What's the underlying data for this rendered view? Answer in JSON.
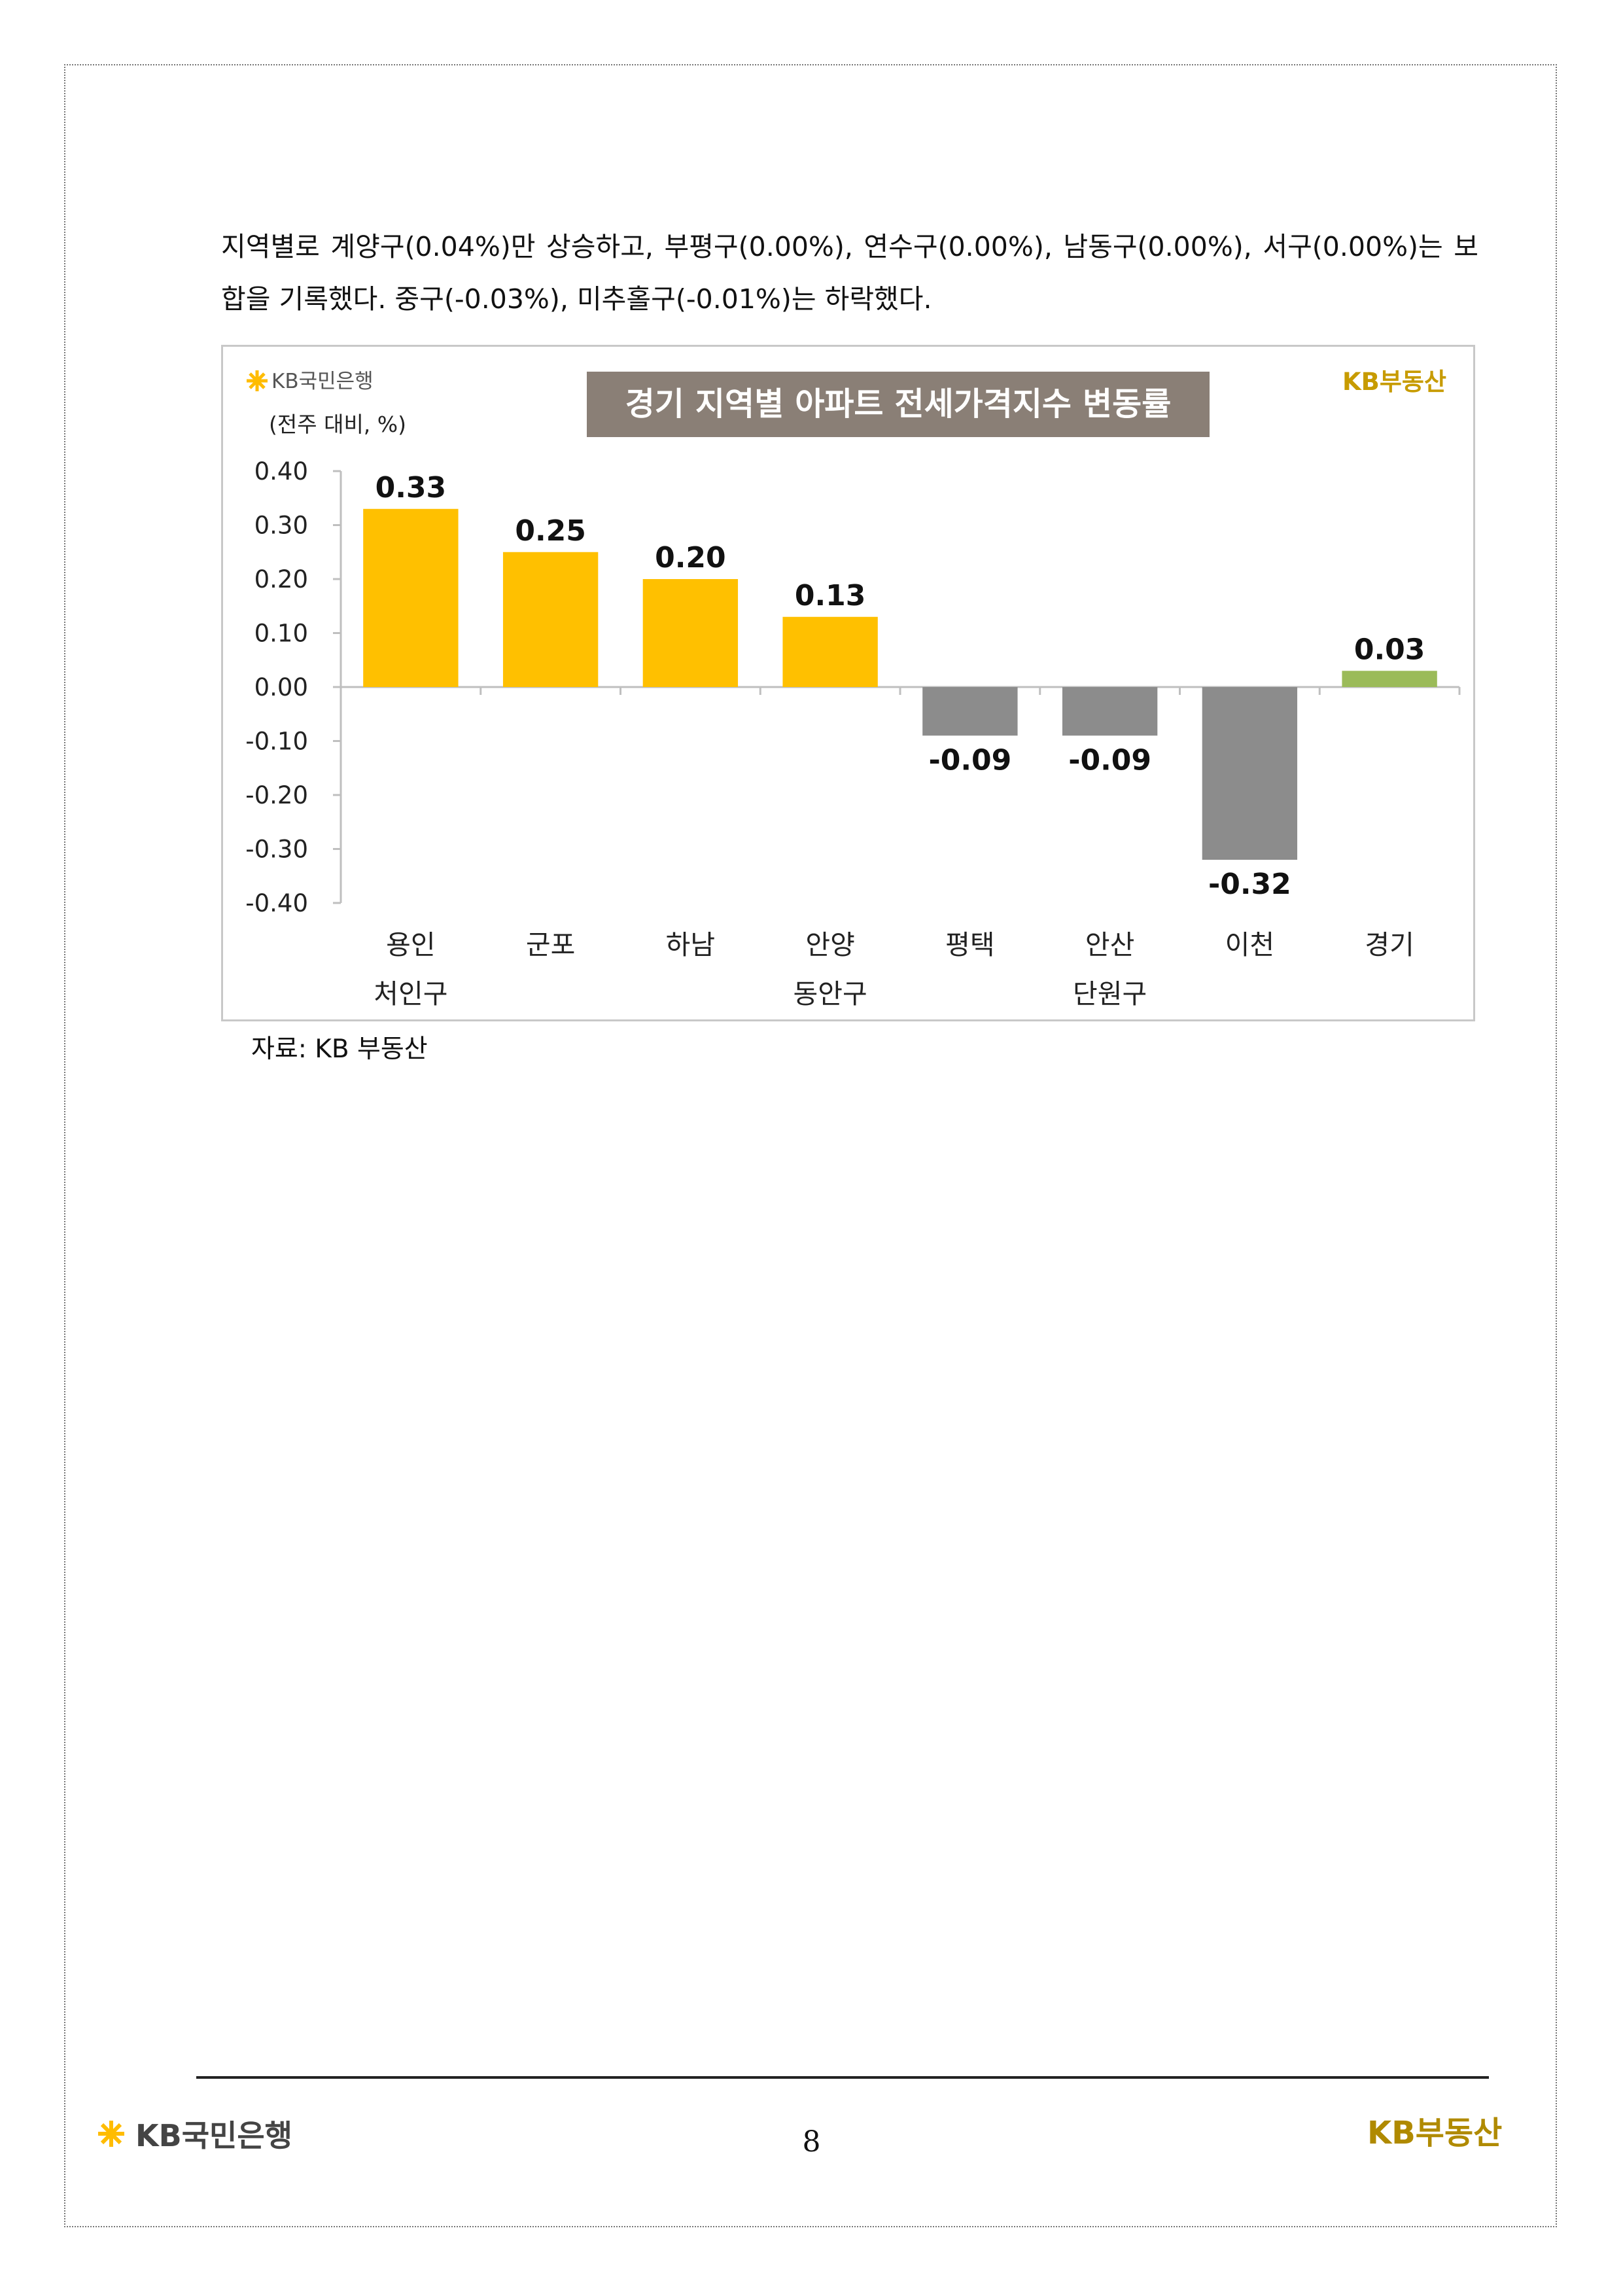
{
  "intro_text": "지역별로 계양구(0.04%)만 상승하고, 부평구(0.00%), 연수구(0.00%), 남동구(0.00%), 서구(0.00%)는 보합을 기록했다. 중구(-0.03%), 미추홀구(-0.01%)는 하락했다.",
  "chart_logo": "KB국민은행",
  "chart_brand": "KB부동산",
  "source_note": "자료: KB 부동산",
  "footer": {
    "bank_logo": "KB국민은행",
    "page_number": "8",
    "brand_logo": "KB부동산"
  },
  "colors": {
    "positive": "#ffc000",
    "negative": "#8c8c8c",
    "total": "#9bbb59",
    "title_bg": "#8a7f76",
    "brand": "#c79b00"
  },
  "chart_data": {
    "type": "bar",
    "title": "경기 지역별 아파트 전세가격지수 변동률",
    "ylabel": "(전주 대비, %)",
    "ylim": [
      -0.4,
      0.4
    ],
    "yticks": [
      "0.40",
      "0.30",
      "0.20",
      "0.10",
      "0.00",
      "-0.10",
      "-0.20",
      "-0.30",
      "-0.40"
    ],
    "ytick_values": [
      0.4,
      0.3,
      0.2,
      0.1,
      0.0,
      -0.1,
      -0.2,
      -0.3,
      -0.4
    ],
    "categories": [
      [
        "용인",
        "처인구"
      ],
      [
        "군포"
      ],
      [
        "하남"
      ],
      [
        "안양",
        "동안구"
      ],
      [
        "평택"
      ],
      [
        "안산",
        "단원구"
      ],
      [
        "이천"
      ],
      [
        "경기"
      ]
    ],
    "values": [
      0.33,
      0.25,
      0.2,
      0.13,
      -0.09,
      -0.09,
      -0.32,
      0.03
    ],
    "value_labels": [
      "0.33",
      "0.25",
      "0.20",
      "0.13",
      "-0.09",
      "-0.09",
      "-0.32",
      "0.03"
    ],
    "bar_colors": [
      "positive",
      "positive",
      "positive",
      "positive",
      "negative",
      "negative",
      "negative",
      "total"
    ],
    "grid": false,
    "legend": "none"
  }
}
